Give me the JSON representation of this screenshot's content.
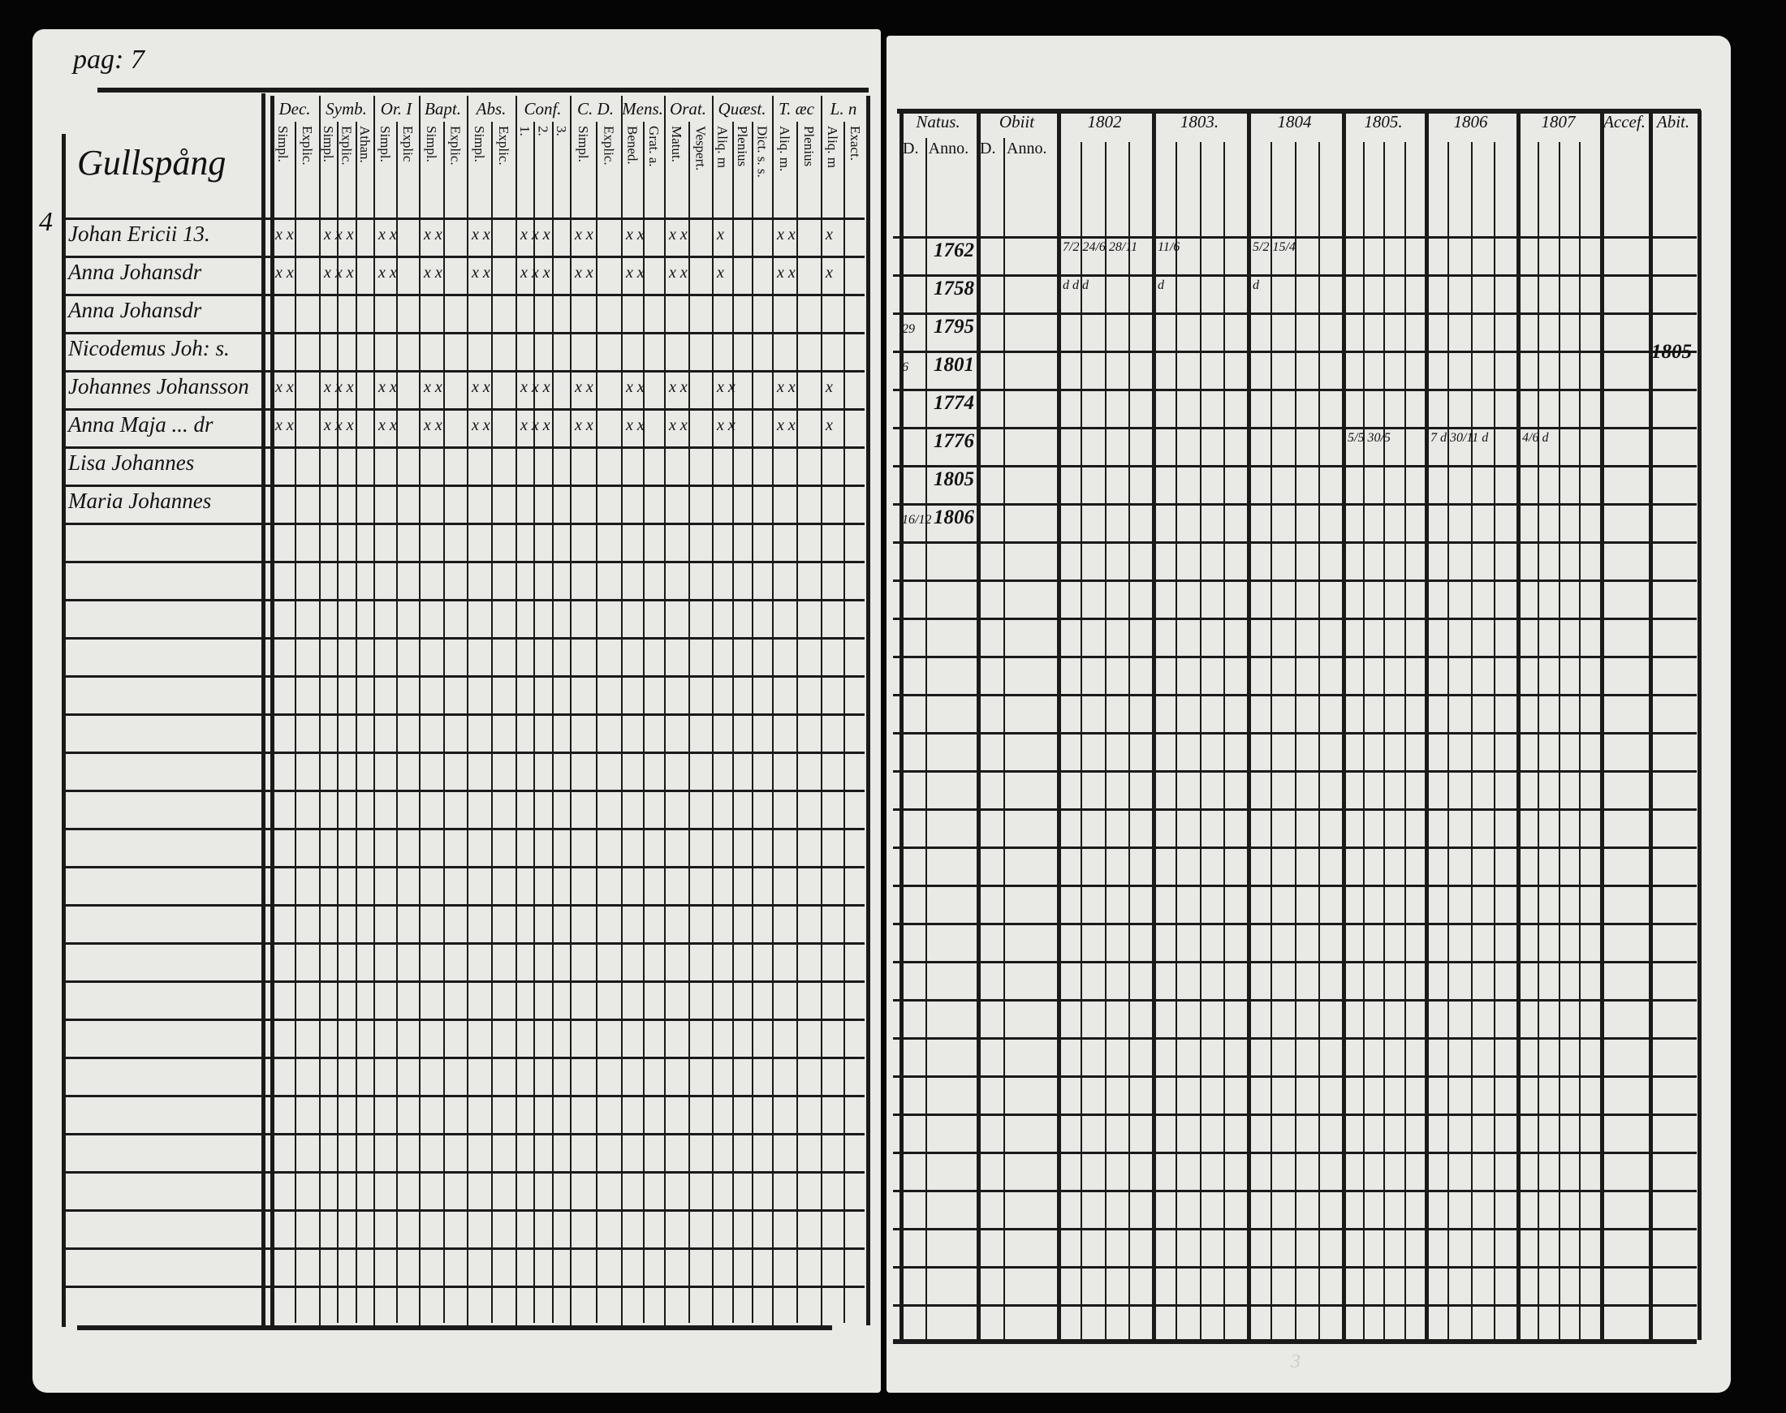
{
  "left_page": {
    "page_label": "pag: 7",
    "place": "Gullspång",
    "groups": [
      {
        "label": "Dec.",
        "subs": [
          "Simpl.",
          "Explic."
        ]
      },
      {
        "label": "Symb.",
        "subs": [
          "Simpl.",
          "Explic.",
          "Athan."
        ]
      },
      {
        "label": "Or. I",
        "subs": [
          "Simpl.",
          "Explic"
        ]
      },
      {
        "label": "Bapt.",
        "subs": [
          "Simpl.",
          "Explic."
        ]
      },
      {
        "label": "Abs.",
        "subs": [
          "Simpl.",
          "Explic."
        ]
      },
      {
        "label": "Conf.",
        "subs": [
          "1.",
          "2.",
          "3."
        ]
      },
      {
        "label": "C. D.",
        "subs": [
          "Simpl.",
          "Explic."
        ]
      },
      {
        "label": "Mens.",
        "subs": [
          "Bened.",
          "Grat. a."
        ]
      },
      {
        "label": "Orat.",
        "subs": [
          "Matut.",
          "Vespert."
        ]
      },
      {
        "label": "Quæst.",
        "subs": [
          "Aliq. m",
          "Plenius",
          "Dict. s. s."
        ]
      },
      {
        "label": "T. æc",
        "subs": [
          "Aliq. m.",
          "Plenius"
        ]
      },
      {
        "label": "L. n",
        "subs": [
          "Aliq. m",
          "Exact."
        ]
      }
    ],
    "household_mark": "4",
    "persons": [
      {
        "name": "Johan Ericii 13.",
        "marks": [
          "x x",
          "x x x",
          "x x",
          "x x",
          "x x",
          "x x x",
          "x x",
          "x x",
          "x x",
          "x",
          "x x",
          "x"
        ]
      },
      {
        "name": "Anna Johansdr",
        "marks": [
          "x x",
          "x x x",
          "x x",
          "x x",
          "x x",
          "x x x",
          "x x",
          "x x",
          "x x",
          "x",
          "x x",
          "x"
        ]
      },
      {
        "name": "Anna Johansdr",
        "marks": [
          "",
          "",
          "",
          "",
          "",
          "",
          "",
          "",
          "",
          "",
          "",
          ""
        ]
      },
      {
        "name": "Nicodemus Joh: s.",
        "marks": [
          "",
          "",
          "",
          "",
          "",
          "",
          "",
          "",
          "",
          "",
          "",
          ""
        ]
      },
      {
        "name": "Johannes Johansson",
        "marks": [
          "x x",
          "x x x",
          "x x",
          "x x",
          "x x",
          "x x x",
          "x x",
          "x x",
          "x x",
          "x x",
          "x x",
          "x"
        ]
      },
      {
        "name": "Anna Maja ... dr",
        "marks": [
          "x x",
          "x x x",
          "x x",
          "x x",
          "x x",
          "x x x",
          "x x",
          "x x",
          "x x",
          "x x",
          "x x",
          "x"
        ]
      },
      {
        "name": "Lisa Johannes",
        "marks": [
          "",
          "",
          "",
          "",
          "",
          "",
          "",
          "",
          "",
          "",
          "",
          ""
        ]
      },
      {
        "name": "Maria Johannes",
        "marks": [
          "",
          "",
          "",
          "",
          "",
          "",
          "",
          "",
          "",
          "",
          "",
          ""
        ]
      }
    ]
  },
  "right_page": {
    "groups": [
      {
        "label": "Natus.",
        "subs": [
          "D.",
          "Anno."
        ]
      },
      {
        "label": "Obiit",
        "subs": [
          "D.",
          "Anno."
        ]
      },
      {
        "label": "1802",
        "subs": []
      },
      {
        "label": "1803.",
        "subs": []
      },
      {
        "label": "1804",
        "subs": []
      },
      {
        "label": "1805.",
        "subs": []
      },
      {
        "label": "1806",
        "subs": []
      },
      {
        "label": "1807",
        "subs": []
      },
      {
        "label": "Accef.",
        "subs": []
      },
      {
        "label": "Abit.",
        "subs": []
      }
    ],
    "births": [
      {
        "day": "",
        "year": "1762"
      },
      {
        "day": "",
        "year": "1758"
      },
      {
        "day": "29",
        "year": "1795"
      },
      {
        "day": "6",
        "year": "1801"
      },
      {
        "day": "",
        "year": "1774"
      },
      {
        "day": "",
        "year": "1776"
      },
      {
        "day": "",
        "year": "1805"
      },
      {
        "day": "16/12",
        "year": "1806"
      }
    ],
    "entries": [
      {
        "row": 0,
        "col": 2,
        "text": "7/2  24/6  28/11"
      },
      {
        "row": 1,
        "col": 2,
        "text": "d  d  d"
      },
      {
        "row": 0,
        "col": 3,
        "text": "11/6"
      },
      {
        "row": 1,
        "col": 3,
        "text": "d"
      },
      {
        "row": 0,
        "col": 4,
        "text": "5/2  15/4"
      },
      {
        "row": 1,
        "col": 4,
        "text": "d"
      },
      {
        "row": 5,
        "col": 5,
        "text": "5/5  30/5"
      },
      {
        "row": 5,
        "col": 6,
        "text": "7 d  30/11 d"
      },
      {
        "row": 5,
        "col": 7,
        "text": "4/6 d"
      }
    ],
    "abiit_year": "1805"
  },
  "footer_mark": "3"
}
